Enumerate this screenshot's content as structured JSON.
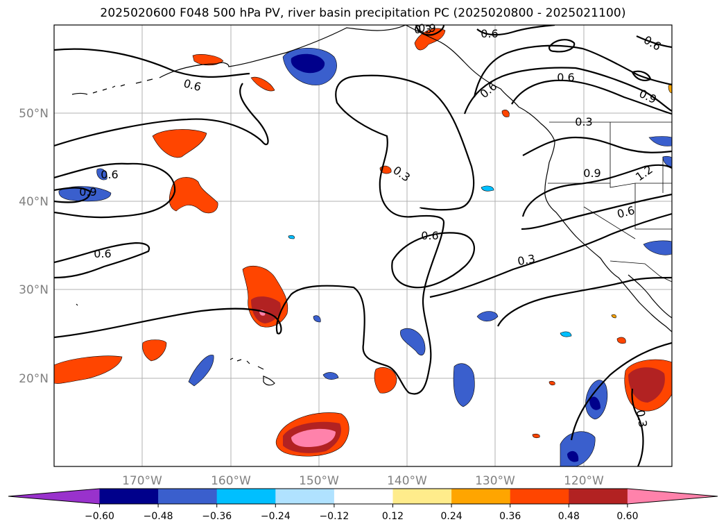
{
  "title": "2025020600 F048 500 hPa PV, river basin precipitation PC (2025020800 - 2025021100)",
  "map": {
    "lon_labels": [
      "170°W",
      "160°W",
      "150°W",
      "140°W",
      "130°W",
      "120°W"
    ],
    "lat_labels": [
      "50°N",
      "40°N",
      "30°N",
      "20°N"
    ],
    "extent": {
      "lon": [
        -180,
        -110
      ],
      "lat": [
        10,
        60
      ]
    },
    "gridlines": true
  },
  "contour_labels": [
    "0.6",
    "0.6",
    "0.9",
    "0.6",
    "0.6",
    "0.9",
    "0.6",
    "0.3",
    "0.6",
    "0.3",
    "0.3",
    "0.9",
    "0.9",
    "0.6",
    "1.2",
    "0.6",
    "0.3",
    "0.6",
    "0.3"
  ],
  "colorbar": {
    "tick_labels": [
      "−0.60",
      "−0.48",
      "−0.36",
      "−0.24",
      "−0.12",
      "0.12",
      "0.24",
      "0.36",
      "0.48",
      "0.60"
    ],
    "colors": [
      "#9932cc",
      "#00008b",
      "#3a5fcd",
      "#00bfff",
      "#b0e2ff",
      "#ffffff",
      "#ffec8b",
      "#ffa500",
      "#ff4500",
      "#b22222",
      "#ff82ab"
    ]
  },
  "chart_data": {
    "type": "heatmap",
    "title": "2025020600 F048 500 hPa PV, river basin precipitation PC (2025020800 - 2025021100)",
    "variables": [
      "500 hPa PV (contours)",
      "river basin precipitation PC (shaded)"
    ],
    "levels": [
      -0.6,
      -0.48,
      -0.36,
      -0.24,
      -0.12,
      0.12,
      0.24,
      0.36,
      0.48,
      0.6
    ],
    "contour_levels": [
      0.3,
      0.6,
      0.9,
      1.2
    ],
    "xlim": [
      -180,
      -110
    ],
    "ylim": [
      10,
      60
    ]
  }
}
